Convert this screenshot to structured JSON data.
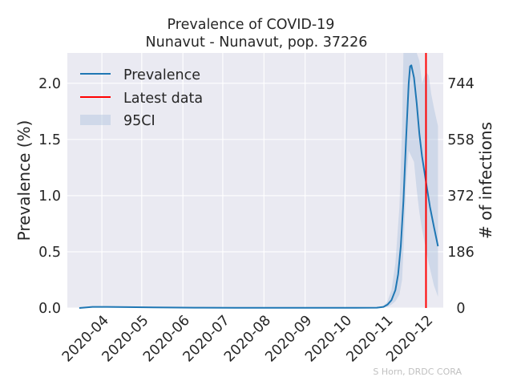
{
  "chart_data": {
    "type": "line",
    "title": "Prevalence of COVID-19",
    "subtitle": "Nunavut - Nunavut, pop. 37226",
    "ylabel": "Prevalence (%)",
    "ylabel_right": "# of infections",
    "ylim": [
      0,
      2.27
    ],
    "yticks": [
      {
        "value": 0.0,
        "label": "0.0"
      },
      {
        "value": 0.5,
        "label": "0.5"
      },
      {
        "value": 1.0,
        "label": "1.0"
      },
      {
        "value": 1.5,
        "label": "1.5"
      },
      {
        "value": 2.0,
        "label": "2.0"
      }
    ],
    "yticks_right": [
      {
        "value": 0,
        "label": "0"
      },
      {
        "value": 186,
        "label": "186"
      },
      {
        "value": 372,
        "label": "372"
      },
      {
        "value": 558,
        "label": "558"
      },
      {
        "value": 744,
        "label": "744"
      }
    ],
    "xlim": [
      "2020-03-06",
      "2020-12-14"
    ],
    "xticks": [
      {
        "value": "2020-04-01",
        "label": "2020-04"
      },
      {
        "value": "2020-05-01",
        "label": "2020-05"
      },
      {
        "value": "2020-06-01",
        "label": "2020-06"
      },
      {
        "value": "2020-07-01",
        "label": "2020-07"
      },
      {
        "value": "2020-08-01",
        "label": "2020-08"
      },
      {
        "value": "2020-09-01",
        "label": "2020-09"
      },
      {
        "value": "2020-10-01",
        "label": "2020-10"
      },
      {
        "value": "2020-11-01",
        "label": "2020-11"
      },
      {
        "value": "2020-12-01",
        "label": "2020-12"
      }
    ],
    "series": [
      {
        "name": "Prevalence",
        "color": "#1f77b4",
        "x": [
          "2020-03-15",
          "2020-03-25",
          "2020-04-05",
          "2020-04-20",
          "2020-05-10",
          "2020-06-10",
          "2020-07-10",
          "2020-08-10",
          "2020-09-10",
          "2020-10-10",
          "2020-10-25",
          "2020-10-30",
          "2020-11-02",
          "2020-11-05",
          "2020-11-08",
          "2020-11-10",
          "2020-11-12",
          "2020-11-14",
          "2020-11-16",
          "2020-11-18",
          "2020-11-19",
          "2020-11-20",
          "2020-11-22",
          "2020-11-24",
          "2020-11-26",
          "2020-11-28",
          "2020-12-01",
          "2020-12-04",
          "2020-12-07",
          "2020-12-10"
        ],
        "y": [
          0.0,
          0.01,
          0.01,
          0.008,
          0.005,
          0.003,
          0.002,
          0.002,
          0.002,
          0.002,
          0.003,
          0.01,
          0.03,
          0.07,
          0.16,
          0.3,
          0.55,
          0.95,
          1.5,
          2.0,
          2.15,
          2.16,
          2.05,
          1.82,
          1.55,
          1.35,
          1.12,
          0.9,
          0.72,
          0.55
        ]
      }
    ],
    "ci": {
      "name": "95CI",
      "color": "#b0c4de",
      "x": [
        "2020-10-25",
        "2020-10-30",
        "2020-11-02",
        "2020-11-05",
        "2020-11-08",
        "2020-11-11",
        "2020-11-13",
        "2020-11-14",
        "2020-11-16",
        "2020-11-18",
        "2020-11-22",
        "2020-11-24",
        "2020-11-26",
        "2020-11-28",
        "2020-12-01",
        "2020-12-03",
        "2020-12-05",
        "2020-12-07",
        "2020-12-10"
      ],
      "upper": [
        0.003,
        0.02,
        0.06,
        0.16,
        0.4,
        0.9,
        1.6,
        2.27,
        2.27,
        2.27,
        2.27,
        2.27,
        2.2,
        2.0,
        2.1,
        2.07,
        1.9,
        1.78,
        1.62
      ],
      "lower": [
        0.0,
        0.005,
        0.01,
        0.03,
        0.06,
        0.12,
        0.25,
        0.5,
        1.1,
        1.4,
        1.3,
        1.05,
        0.85,
        0.7,
        0.52,
        0.4,
        0.3,
        0.2,
        0.1
      ]
    },
    "vline": {
      "name": "Latest data",
      "x": "2020-12-01",
      "color": "#ff0000"
    },
    "legend": {
      "position": "top-left"
    },
    "grid": true,
    "credit": "S Horn, DRDC CORA"
  }
}
